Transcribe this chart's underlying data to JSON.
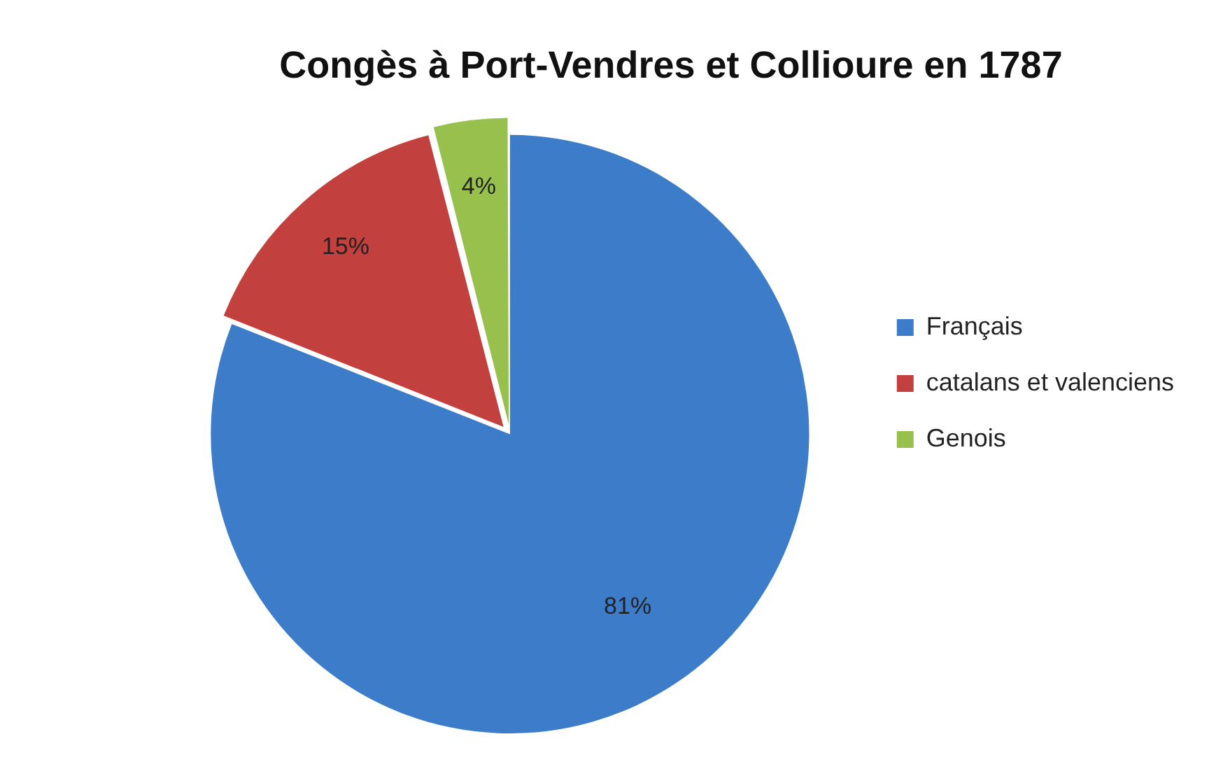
{
  "chart_data": {
    "type": "pie",
    "title": "Congès à Port-Vendres et Collioure en 1787",
    "categories": [
      "Français",
      "catalans et valenciens",
      "Genois"
    ],
    "values": [
      81,
      15,
      4
    ],
    "colors": [
      "#3d7cc9",
      "#c2403d",
      "#98c04c"
    ],
    "value_labels": [
      "81%",
      "15%",
      "4%"
    ],
    "legend": "right"
  }
}
